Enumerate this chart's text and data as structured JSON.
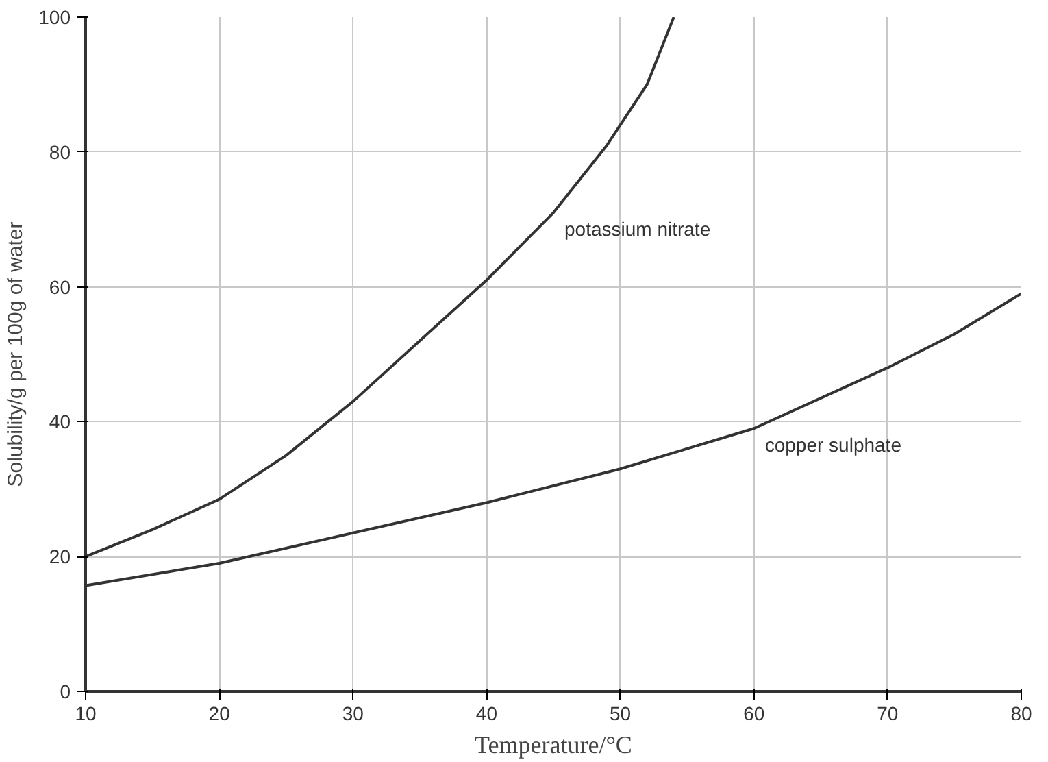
{
  "chart_data": {
    "type": "line",
    "xlabel": "Temperature/°C",
    "ylabel": "Solubility/g per 100g of water",
    "xlim": [
      10,
      80
    ],
    "ylim": [
      0,
      100
    ],
    "xticks": [
      10,
      20,
      30,
      40,
      50,
      60,
      70,
      80
    ],
    "yticks": [
      0,
      20,
      40,
      60,
      80,
      100
    ],
    "grid": true,
    "series": [
      {
        "name": "potassium nitrate",
        "color": "#333333",
        "x": [
          10,
          15,
          20,
          25,
          30,
          35,
          40,
          45,
          49,
          52,
          54
        ],
        "values": [
          20,
          24,
          28.5,
          35,
          43,
          52,
          61,
          71,
          81,
          90,
          100
        ]
      },
      {
        "name": "copper sulphate",
        "color": "#333333",
        "x": [
          10,
          20,
          30,
          40,
          50,
          60,
          70,
          75,
          80
        ],
        "values": [
          15.7,
          19,
          23.5,
          28,
          33,
          39,
          48,
          53,
          59
        ]
      }
    ]
  }
}
